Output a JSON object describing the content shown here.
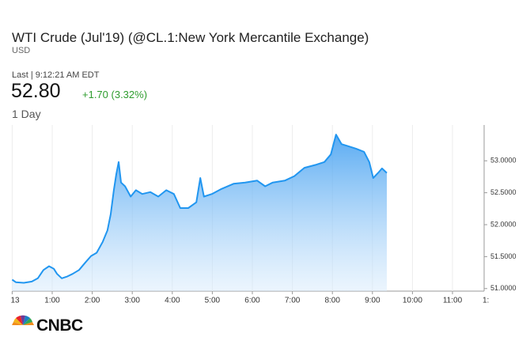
{
  "header": {
    "title": "WTI Crude (Jul'19) (@CL.1:New York Mercantile Exchange)",
    "currency": "USD",
    "last_label": "Last | 9:12:21 AM EDT",
    "price": "52.80",
    "change": "+1.70 (3.32%)",
    "range": "1 Day"
  },
  "logo": "CNBC",
  "chart_data": {
    "type": "area",
    "color": "#2196f0",
    "x": [
      0.0,
      0.09,
      0.29,
      0.49,
      0.64,
      0.78,
      0.92,
      1.04,
      1.12,
      1.24,
      1.38,
      1.51,
      1.67,
      1.83,
      1.97,
      2.11,
      2.26,
      2.38,
      2.46,
      2.54,
      2.6,
      2.66,
      2.72,
      2.82,
      2.96,
      3.09,
      3.25,
      3.45,
      3.65,
      3.85,
      4.04,
      4.2,
      4.4,
      4.6,
      4.7,
      4.79,
      4.99,
      5.23,
      5.53,
      5.82,
      6.12,
      6.32,
      6.51,
      6.81,
      7.05,
      7.3,
      7.6,
      7.8,
      7.96,
      8.09,
      8.23,
      8.39,
      8.59,
      8.79,
      8.92,
      9.02,
      9.14,
      9.24,
      9.36
    ],
    "values": [
      51.14,
      51.1,
      51.09,
      51.11,
      51.16,
      51.29,
      51.35,
      51.31,
      51.23,
      51.16,
      51.19,
      51.23,
      51.29,
      51.41,
      51.51,
      51.56,
      51.73,
      51.91,
      52.16,
      52.54,
      52.79,
      52.98,
      52.66,
      52.6,
      52.44,
      52.54,
      52.48,
      52.51,
      52.44,
      52.54,
      52.48,
      52.26,
      52.26,
      52.35,
      52.73,
      52.44,
      52.48,
      52.56,
      52.64,
      52.66,
      52.69,
      52.6,
      52.66,
      52.69,
      52.76,
      52.89,
      52.94,
      52.98,
      53.1,
      53.41,
      53.26,
      53.23,
      53.19,
      53.14,
      52.98,
      52.73,
      52.81,
      52.88,
      52.81
    ],
    "xlim": [
      0,
      12
    ],
    "xticks": [
      {
        "value": 0,
        "label": "13"
      },
      {
        "value": 1,
        "label": "1:00"
      },
      {
        "value": 2,
        "label": "2:00"
      },
      {
        "value": 3,
        "label": "3:00"
      },
      {
        "value": 4,
        "label": "4:00"
      },
      {
        "value": 5,
        "label": "5:00"
      },
      {
        "value": 6,
        "label": "6:00"
      },
      {
        "value": 7,
        "label": "7:00"
      },
      {
        "value": 8,
        "label": "8:00"
      },
      {
        "value": 9,
        "label": "9:00"
      },
      {
        "value": 10,
        "label": "10:00"
      },
      {
        "value": 11,
        "label": "11:00"
      },
      {
        "value": 12,
        "label": "1:"
      }
    ],
    "ylim": [
      50.96,
      53.56
    ],
    "yticks": [
      {
        "value": 51,
        "label": "51.0000"
      },
      {
        "value": 51.5,
        "label": "51.5000"
      },
      {
        "value": 52,
        "label": "52.0000"
      },
      {
        "value": 52.5,
        "label": "52.5000"
      },
      {
        "value": 53,
        "label": "53.0000"
      }
    ],
    "grid": true
  }
}
